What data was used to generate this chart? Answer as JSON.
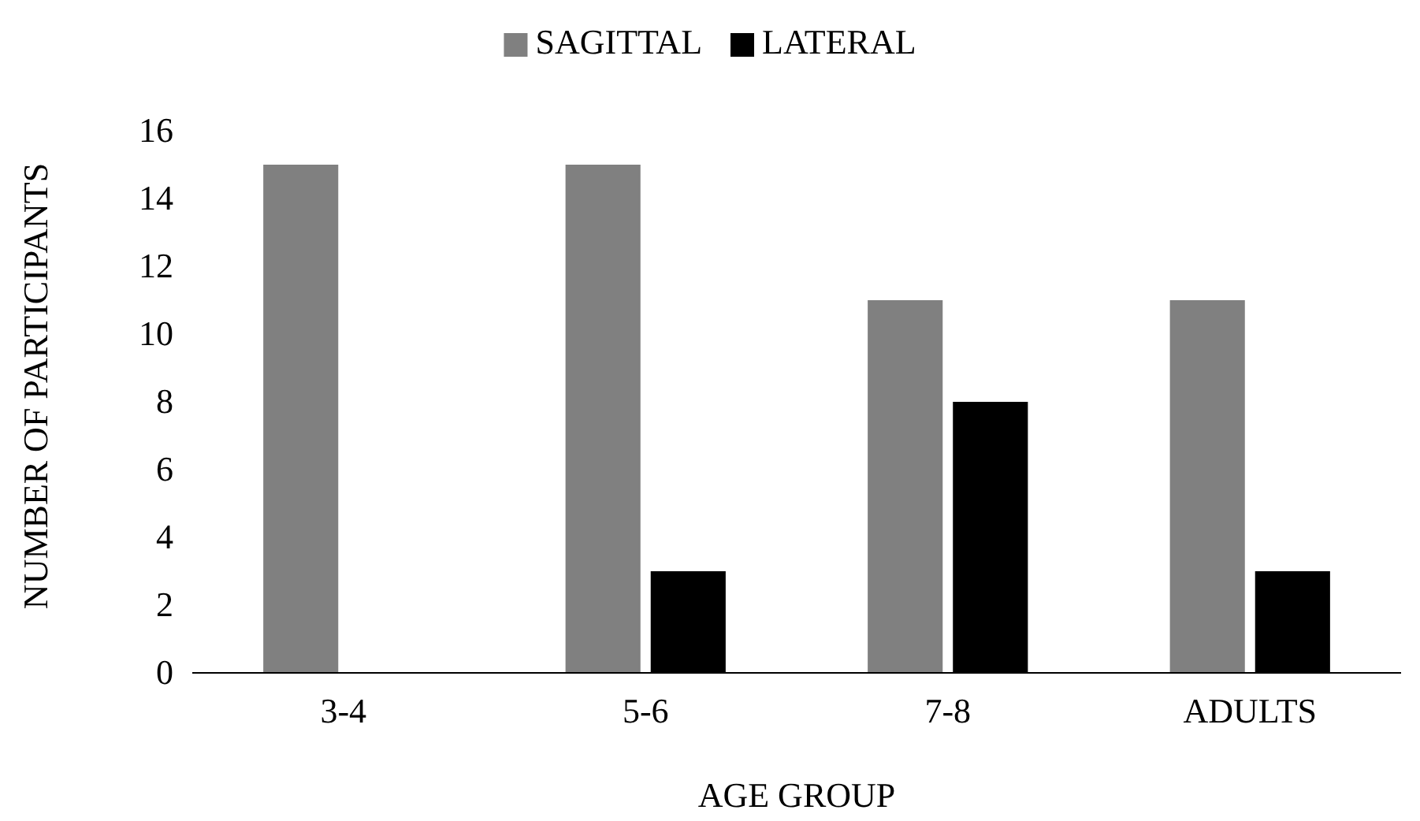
{
  "chart_data": {
    "type": "bar",
    "xlabel": "AGE GROUP",
    "ylabel": "NUMBER OF PARTICIPANTS",
    "categories": [
      "3-4",
      "5-6",
      "7-8",
      "ADULTS"
    ],
    "series": [
      {
        "name": "SAGITTAL",
        "color": "#808080",
        "values": [
          15,
          15,
          11,
          11
        ]
      },
      {
        "name": "LATERAL",
        "color": "#000000",
        "values": [
          0,
          3,
          8,
          3
        ]
      }
    ],
    "ylim": [
      0,
      16
    ],
    "yticks": [
      0,
      2,
      4,
      6,
      8,
      10,
      12,
      14,
      16
    ],
    "grid": false,
    "legend": "top"
  }
}
